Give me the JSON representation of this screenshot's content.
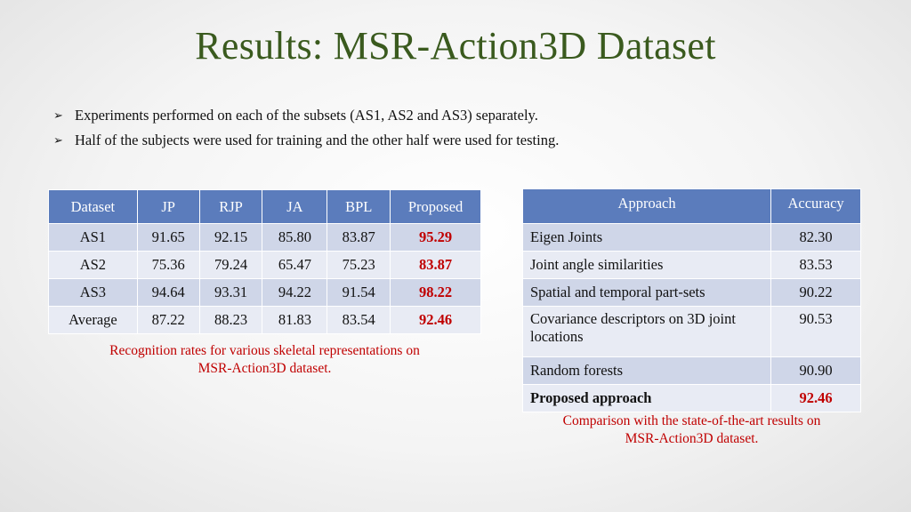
{
  "slide": {
    "title": "Results: MSR-Action3D Dataset",
    "bullets": [
      "Experiments performed on each of the subsets (AS1, AS2 and AS3) separately.",
      "Half of the subjects were used for training and the other half were used for testing."
    ]
  },
  "table1": {
    "headers": [
      "Dataset",
      "JP",
      "RJP",
      "JA",
      "BPL",
      "Proposed"
    ],
    "rows": [
      [
        "AS1",
        "91.65",
        "92.15",
        "85.80",
        "83.87",
        "95.29"
      ],
      [
        "AS2",
        "75.36",
        "79.24",
        "65.47",
        "75.23",
        "83.87"
      ],
      [
        "AS3",
        "94.64",
        "93.31",
        "94.22",
        "91.54",
        "98.22"
      ],
      [
        "Average",
        "87.22",
        "88.23",
        "81.83",
        "83.54",
        "92.46"
      ]
    ],
    "caption_line1": "Recognition rates for various skeletal representations on",
    "caption_line2": "MSR-Action3D dataset."
  },
  "table2": {
    "headers": [
      "Approach",
      "Accuracy"
    ],
    "rows": [
      [
        "Eigen Joints",
        "82.30"
      ],
      [
        "Joint angle similarities",
        "83.53"
      ],
      [
        "Spatial and temporal part-sets",
        "90.22"
      ],
      [
        "Covariance descriptors on 3D joint locations",
        "90.53"
      ],
      [
        "Random forests",
        "90.90"
      ],
      [
        "Proposed approach",
        "92.46"
      ]
    ],
    "caption_line1": "Comparison with the state-of-the-art results on",
    "caption_line2": "MSR-Action3D dataset."
  },
  "colors": {
    "title": "#3a5a1e",
    "header_bg": "#5b7cbc",
    "row_dark": "#cfd6e8",
    "row_light": "#e8ebf4",
    "highlight": "#c00000"
  }
}
